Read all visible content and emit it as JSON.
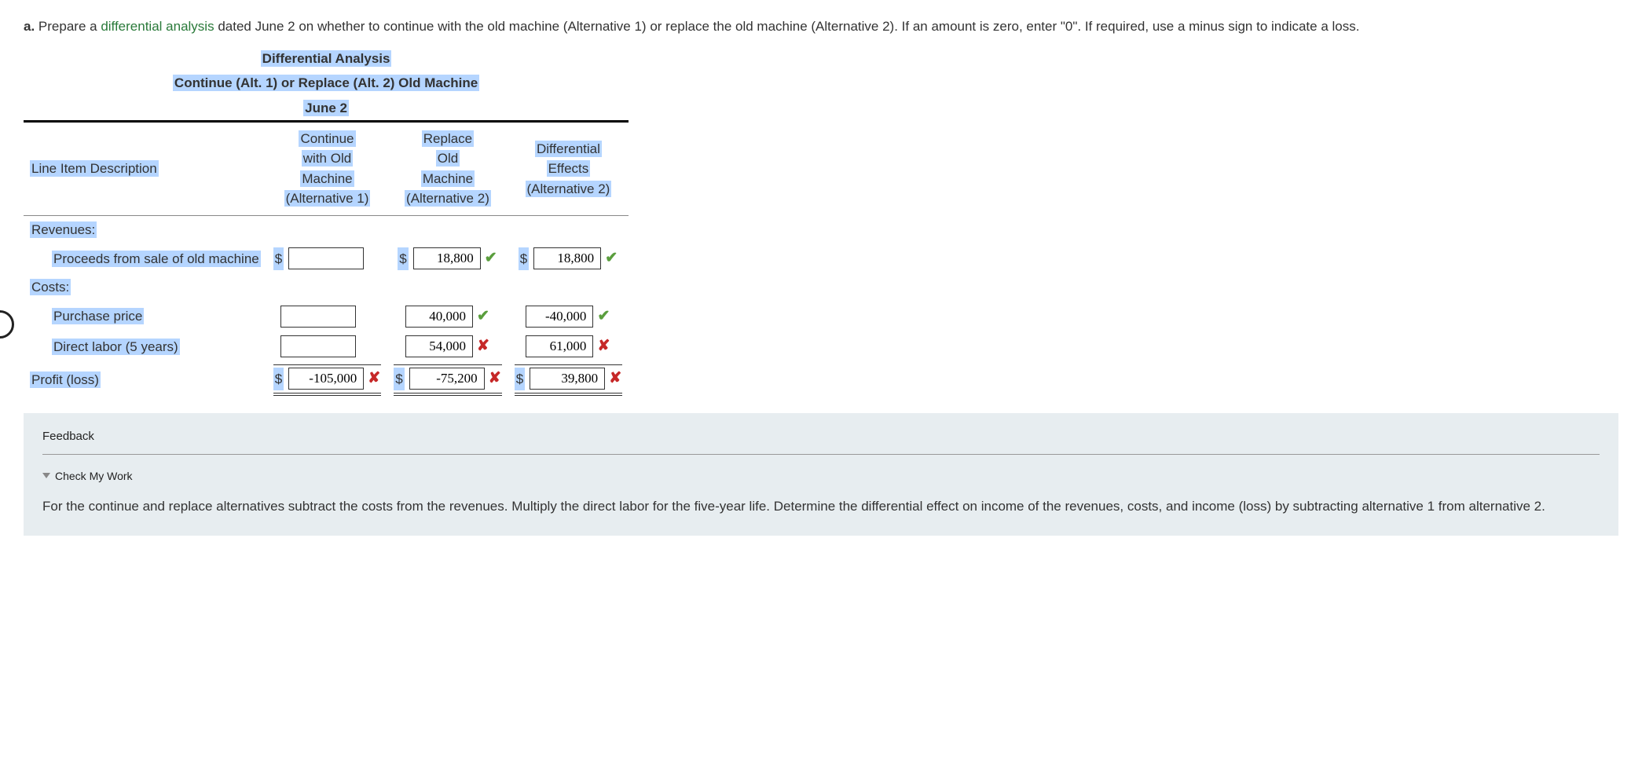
{
  "question": {
    "label": "a.",
    "pre_term": "Prepare a ",
    "term": "differential analysis",
    "post_term": " dated June 2 on whether to continue with the old machine (Alternative 1) or replace the old machine (Alternative 2). If an amount is zero, enter \"0\". If required, use a minus sign to indicate a loss."
  },
  "table": {
    "title1": "Differential Analysis",
    "title2": "Continue (Alt. 1) or Replace (Alt. 2) Old Machine",
    "title3": "June 2",
    "headers": {
      "desc": "Line Item Description",
      "alt1_l1": "Continue",
      "alt1_l2": "with Old",
      "alt1_l3": "Machine",
      "alt1_l4": "(Alternative 1)",
      "alt2_l1": "Replace",
      "alt2_l2": "Old",
      "alt2_l3": "Machine",
      "alt2_l4": "(Alternative 2)",
      "diff_l1": "Differential",
      "diff_l2": "Effects",
      "diff_l3": "(Alternative 2)"
    },
    "rows": {
      "revenues_label": "Revenues:",
      "proceeds_label": "Proceeds from sale of old machine",
      "costs_label": "Costs:",
      "purchase_label": "Purchase price",
      "labor_label": "Direct labor (5 years)",
      "profit_label": "Profit (loss)"
    },
    "cells": {
      "proceeds": {
        "alt1": {
          "value": "",
          "dollar": true,
          "mark": ""
        },
        "alt2": {
          "value": "18,800",
          "dollar": true,
          "mark": "correct"
        },
        "diff": {
          "value": "18,800",
          "dollar": true,
          "mark": "correct"
        }
      },
      "purchase": {
        "alt1": {
          "value": "",
          "dollar": false,
          "mark": ""
        },
        "alt2": {
          "value": "40,000",
          "dollar": false,
          "mark": "correct"
        },
        "diff": {
          "value": "-40,000",
          "dollar": false,
          "mark": "correct"
        }
      },
      "labor": {
        "alt1": {
          "value": "",
          "dollar": false,
          "mark": ""
        },
        "alt2": {
          "value": "54,000",
          "dollar": false,
          "mark": "wrong"
        },
        "diff": {
          "value": "61,000",
          "dollar": false,
          "mark": "wrong"
        }
      },
      "profit": {
        "alt1": {
          "value": "-105,000",
          "dollar": true,
          "mark": "wrong"
        },
        "alt2": {
          "value": "-75,200",
          "dollar": true,
          "mark": "wrong"
        },
        "diff": {
          "value": "39,800",
          "dollar": true,
          "mark": "wrong"
        }
      }
    },
    "marks": {
      "correct": "✔",
      "wrong": "✘"
    }
  },
  "feedback": {
    "title": "Feedback",
    "cmw": "Check My Work",
    "body": "For the continue and replace alternatives subtract the costs from the revenues. Multiply the direct labor for the five-year life. Determine the differential effect on income of the revenues, costs, and income (loss) by subtracting alternative 1 from alternative 2."
  },
  "colors": {
    "highlight": "#b5d5ff",
    "term": "#2a7a3a",
    "correct": "#5a9e3d",
    "wrong": "#c62828",
    "feedback_bg": "#e7edf0"
  }
}
